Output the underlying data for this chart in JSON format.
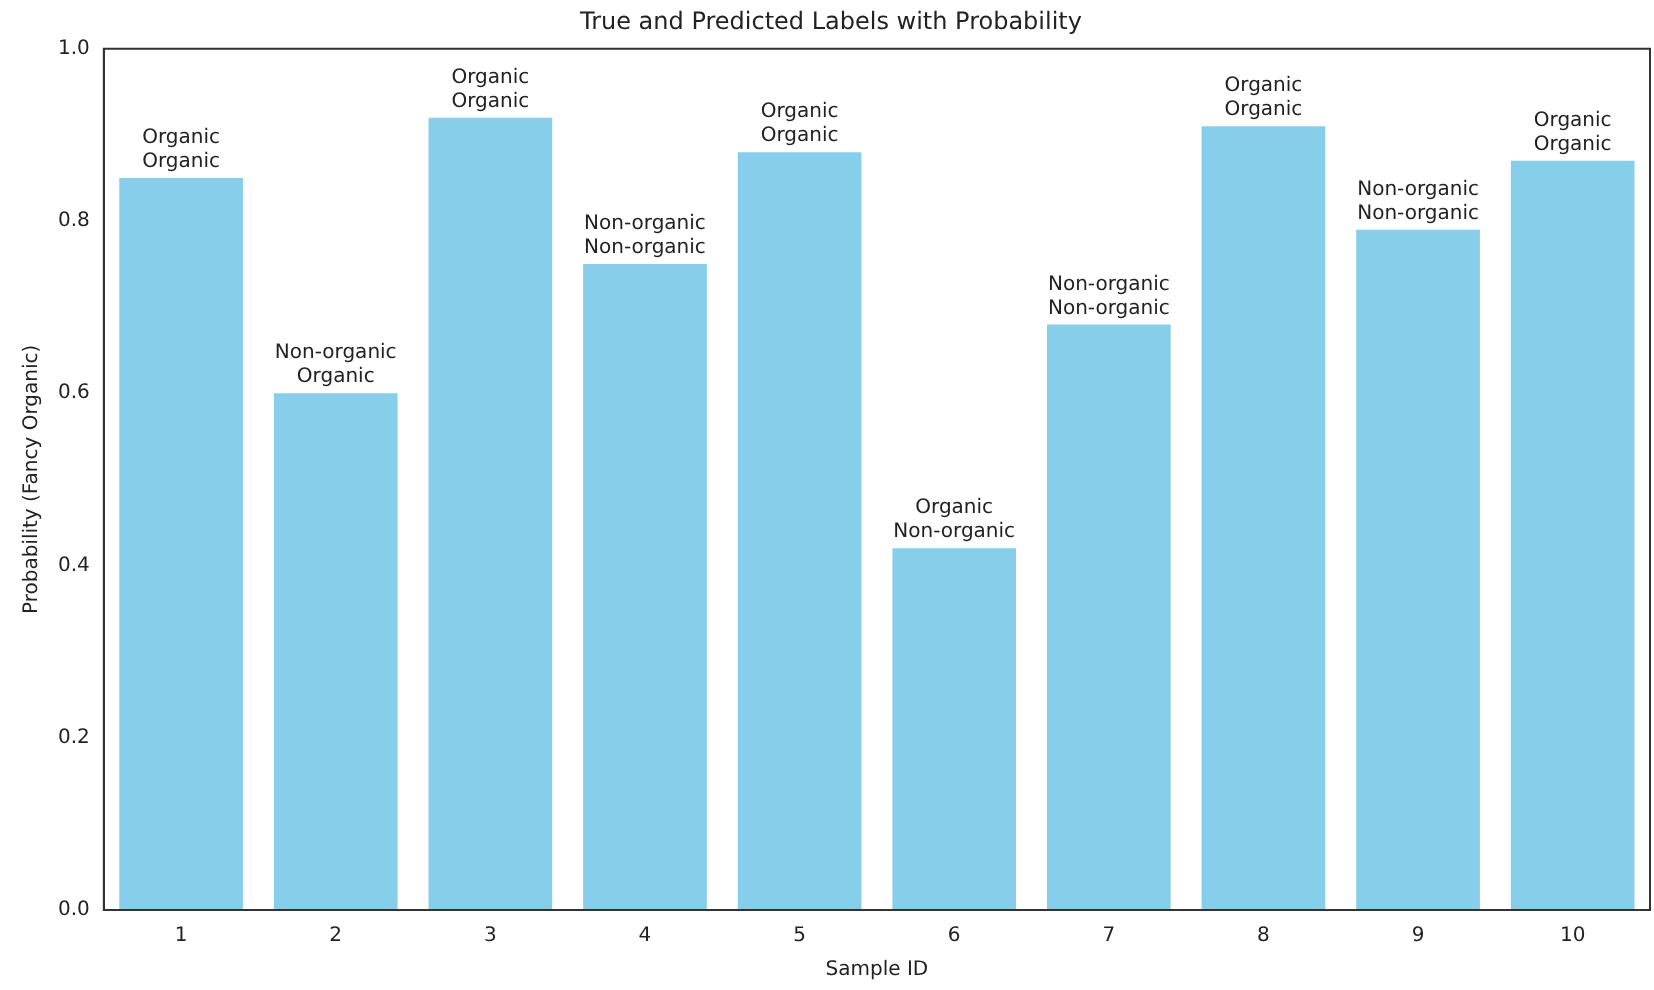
{
  "chart_data": {
    "type": "bar",
    "title": "True and Predicted Labels with Probability",
    "xlabel": "Sample ID",
    "ylabel": "Probability (Fancy Organic)",
    "categories": [
      "1",
      "2",
      "3",
      "4",
      "5",
      "6",
      "7",
      "8",
      "9",
      "10"
    ],
    "values": [
      0.85,
      0.6,
      0.92,
      0.75,
      0.88,
      0.42,
      0.68,
      0.91,
      0.79,
      0.87
    ],
    "color": "#87ceeb",
    "ylim": [
      0,
      1.0
    ],
    "yticks": [
      {
        "value": 0,
        "label": "0.0"
      },
      {
        "value": 0.2,
        "label": "0.2"
      },
      {
        "value": 0.4,
        "label": "0.4"
      },
      {
        "value": 0.6,
        "label": "0.6"
      },
      {
        "value": 0.8,
        "label": "0.8"
      },
      {
        "value": 1,
        "label": "1.0"
      }
    ],
    "grid": false,
    "legend": false,
    "annotations": [
      {
        "text": "Organic\nOrganic",
        "x": "1",
        "y": 0.85
      },
      {
        "text": "Non-organic\nOrganic",
        "x": "2",
        "y": 0.6
      },
      {
        "text": "Organic\nOrganic",
        "x": "3",
        "y": 0.92
      },
      {
        "text": "Non-organic\nNon-organic",
        "x": "4",
        "y": 0.75
      },
      {
        "text": "Organic\nOrganic",
        "x": "5",
        "y": 0.88
      },
      {
        "text": "Organic\nNon-organic",
        "x": "6",
        "y": 0.42
      },
      {
        "text": "Non-organic\nNon-organic",
        "x": "7",
        "y": 0.68
      },
      {
        "text": "Organic\nOrganic",
        "x": "8",
        "y": 0.91
      },
      {
        "text": "Non-organic\nNon-organic",
        "x": "9",
        "y": 0.79
      },
      {
        "text": "Organic\nOrganic",
        "x": "10",
        "y": 0.87
      }
    ]
  }
}
